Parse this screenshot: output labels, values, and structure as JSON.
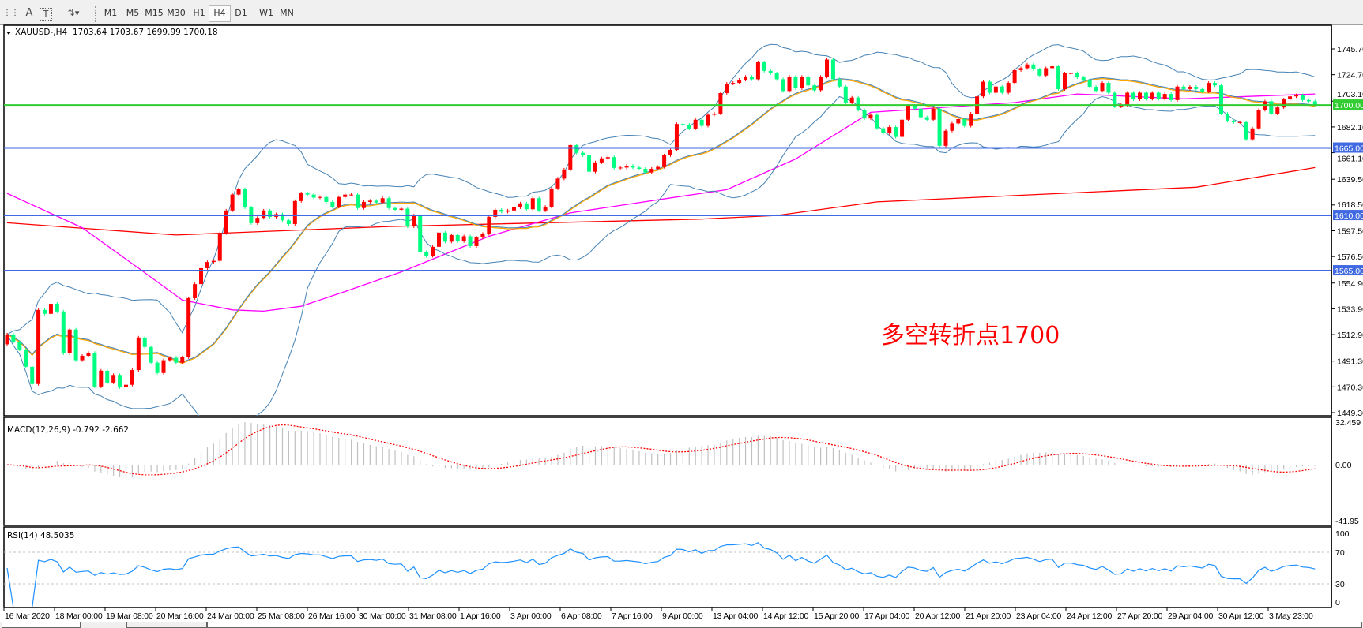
{
  "toolbar": {
    "tools": [
      {
        "name": "grid-icon",
        "glyph": "⋮⋮"
      },
      {
        "name": "text-icon",
        "glyph": "A"
      },
      {
        "name": "text-label-icon",
        "glyph": "T"
      },
      {
        "name": "arrows-icon",
        "glyph": "⇅▾"
      }
    ],
    "timeframes": [
      "M1",
      "M5",
      "M15",
      "M30",
      "H1",
      "H4",
      "D1",
      "W1",
      "MN"
    ],
    "active_timeframe": "H4"
  },
  "chart_header": "XAUUSD-,H4  1703.64 1703.67 1699.99 1700.18",
  "annotation": {
    "text": "多空转折点1700",
    "color": "#FF0000"
  },
  "chart_data": {
    "type": "candlestick",
    "symbol": "XAUUSD-",
    "timeframe": "H4",
    "ohlc_last": {
      "open": 1703.64,
      "high": 1703.67,
      "low": 1699.99,
      "close": 1700.18
    },
    "closes": [
      1513,
      1507,
      1500.8,
      1486.7,
      1472.6,
      1533,
      1529.8,
      1538,
      1531.7,
      1497.6,
      1517,
      1492,
      1495.6,
      1498,
      1470.6,
      1483.5,
      1473.8,
      1480,
      1470,
      1472,
      1484,
      1510.5,
      1502.8,
      1490,
      1481.6,
      1492,
      1494,
      1490,
      1494.4,
      1542.6,
      1554,
      1567,
      1572,
      1573,
      1595.5,
      1614,
      1627,
      1631.3,
      1616.5,
      1603.7,
      1608,
      1614,
      1608.8,
      1611,
      1606,
      1603,
      1621.7,
      1628,
      1627,
      1624.5,
      1625,
      1621,
      1617,
      1625,
      1627,
      1627,
      1616,
      1621,
      1622,
      1620.5,
      1624,
      1616,
      1614.6,
      1615.5,
      1601,
      1610,
      1580,
      1577,
      1584.4,
      1596,
      1588.6,
      1594,
      1589,
      1593,
      1585,
      1592,
      1595,
      1608.8,
      1614.6,
      1613,
      1614,
      1616.5,
      1619.8,
      1615,
      1624,
      1614,
      1617,
      1632,
      1640,
      1647.4,
      1667.3,
      1661,
      1659,
      1645.6,
      1653.2,
      1656.5,
      1657.5,
      1648.7,
      1649,
      1650.5,
      1649,
      1648,
      1645,
      1648,
      1649.5,
      1659,
      1663.4,
      1684.5,
      1684,
      1680.8,
      1688,
      1683,
      1692,
      1693,
      1709.7,
      1717.4,
      1718,
      1720.6,
      1723,
      1721,
      1734.8,
      1727.8,
      1725.8,
      1721,
      1711.4,
      1723,
      1713.6,
      1723,
      1716,
      1712,
      1723,
      1737,
      1721,
      1715,
      1702,
      1706,
      1696,
      1689,
      1692,
      1681,
      1677,
      1682,
      1674,
      1688,
      1699.4,
      1697,
      1690,
      1688,
      1697,
      1666.7,
      1679,
      1685,
      1688.5,
      1683,
      1693,
      1707,
      1719,
      1710,
      1715,
      1710,
      1718,
      1728.4,
      1730,
      1733,
      1729,
      1724,
      1730,
      1731.5,
      1712.9,
      1725.8,
      1726,
      1722.5,
      1720.6,
      1714.8,
      1711.5,
      1718,
      1710,
      1698.8,
      1700,
      1710,
      1704.6,
      1710,
      1705,
      1710,
      1705,
      1709,
      1704,
      1715,
      1713,
      1714.8,
      1713,
      1711,
      1718,
      1716,
      1693,
      1687,
      1686,
      1686,
      1672,
      1680.9,
      1696,
      1703,
      1693,
      1698,
      1704.5,
      1707,
      1708,
      1704,
      1703,
      1700.18
    ],
    "first_open": 1505,
    "bull_color": "#FF0000",
    "bear_color": "#00FF80",
    "price_ticks": [
      "1745.70",
      "1724.70",
      "1703.10",
      "1682.10",
      "1661.10",
      "1639.50",
      "1618.50",
      "1597.50",
      "1576.50",
      "1554.90",
      "1533.90",
      "1512.90",
      "1491.30",
      "1470.30",
      "1449.30"
    ],
    "ylim": [
      1449.3,
      1745.7
    ],
    "x_tick_labels": [
      "16 Mar 2020",
      "18 Mar 00:00",
      "19 Mar 08:00",
      "20 Mar 16:00",
      "24 Mar 00:00",
      "25 Mar 08:00",
      "26 Mar 16:00",
      "30 Mar 00:00",
      "31 Mar 08:00",
      "1 Apr 16:00",
      "3 Apr 00:00",
      "6 Apr 08:00",
      "7 Apr 16:00",
      "9 Apr 00:00",
      "13 Apr 04:00",
      "14 Apr 12:00",
      "15 Apr 20:00",
      "17 Apr 04:00",
      "20 Apr 12:00",
      "21 Apr 20:00",
      "23 Apr 04:00",
      "24 Apr 12:00",
      "27 Apr 20:00",
      "29 Apr 04:00",
      "30 Apr 12:00",
      "3 May 23:00"
    ],
    "hlines": [
      {
        "price": 1700,
        "label": "1700.00",
        "color": "#32CD32"
      },
      {
        "price": 1665,
        "label": "1665.00",
        "color": "#4169E1"
      },
      {
        "price": 1610,
        "label": "1610.00",
        "color": "#4169E1"
      },
      {
        "price": 1565,
        "label": "1565.00",
        "color": "#4169E1"
      }
    ],
    "bollinger": {
      "period": 20,
      "deviation": 2,
      "color": "#4682B4"
    },
    "ma_fast": {
      "period": 20,
      "color": "#FFA500"
    },
    "ma_magenta": {
      "color": "#FF00FF",
      "points": [
        [
          0,
          1628
        ],
        [
          12,
          1600
        ],
        [
          21,
          1567
        ],
        [
          28,
          1541
        ],
        [
          36,
          1533
        ],
        [
          41,
          1532
        ],
        [
          47,
          1536
        ],
        [
          54,
          1548
        ],
        [
          63,
          1564
        ],
        [
          77,
          1593
        ],
        [
          90,
          1612
        ],
        [
          107,
          1625
        ],
        [
          115,
          1631
        ],
        [
          126,
          1656
        ],
        [
          138,
          1694
        ],
        [
          161,
          1702
        ],
        [
          171,
          1709
        ],
        [
          188,
          1705
        ],
        [
          209,
          1709
        ]
      ]
    },
    "ma_red": {
      "color": "#FF0000",
      "points": [
        [
          0,
          1604
        ],
        [
          27,
          1594
        ],
        [
          61,
          1601
        ],
        [
          111,
          1607
        ],
        [
          123,
          1610
        ],
        [
          139,
          1621
        ],
        [
          190,
          1633
        ],
        [
          209,
          1649
        ]
      ]
    },
    "macd": {
      "label": "MACD(12,26,9) -0.792 -2.662",
      "fast": 12,
      "slow": 26,
      "signal": 9,
      "ticks": [
        "32.459",
        "0.00",
        "-41.95"
      ],
      "ylim": [
        -41.95,
        32.459
      ],
      "hist_color": "#C0C0C0",
      "signal_color": "#FF0000"
    },
    "rsi": {
      "label": "RSI(14) 48.5035",
      "period": 14,
      "ticks": [
        "100",
        "70",
        "30",
        "0"
      ],
      "levels": [
        70,
        30
      ],
      "ylim": [
        0,
        100
      ],
      "color": "#1E90FF"
    }
  }
}
